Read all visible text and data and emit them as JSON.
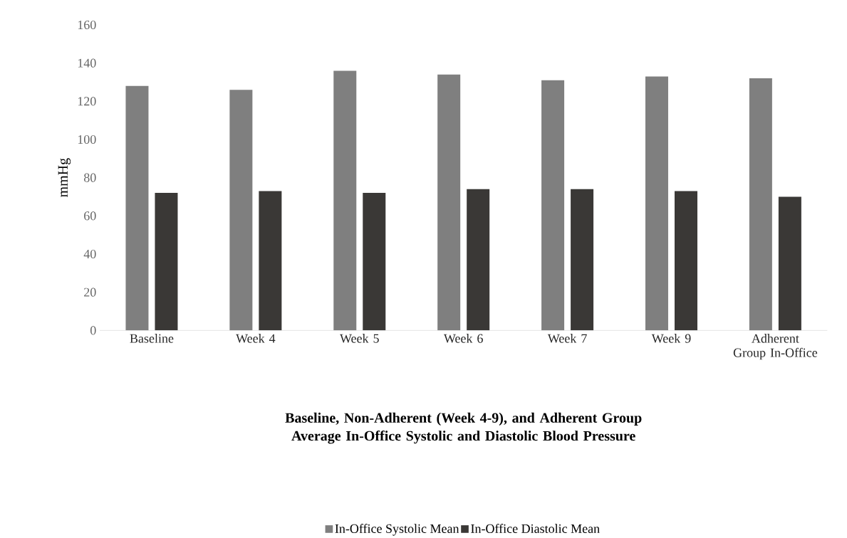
{
  "chart_data": {
    "type": "bar",
    "title": "Baseline, Non-Adherent (Week 4-9), and Adherent Group Average In-Office Systolic and Diastolic Blood Pressure",
    "ylabel": "mmHg",
    "categories": [
      "Baseline",
      "Week 4",
      "Week 5",
      "Week 6",
      "Week 7",
      "Week 9",
      "Adherent Group In-Office"
    ],
    "series": [
      {
        "name": "In-Office Systolic Mean",
        "color": "#7f7f7f",
        "values": [
          128,
          126,
          136,
          134,
          131,
          133,
          132
        ]
      },
      {
        "name": "In-Office Diastolic Mean",
        "color": "#3a3836",
        "values": [
          72,
          73,
          72,
          74,
          74,
          73,
          70
        ]
      }
    ],
    "ylim": [
      0,
      160
    ],
    "yticks": [
      0,
      20,
      40,
      60,
      80,
      100,
      120,
      140,
      160
    ],
    "grid": false,
    "legend": "bottom"
  }
}
